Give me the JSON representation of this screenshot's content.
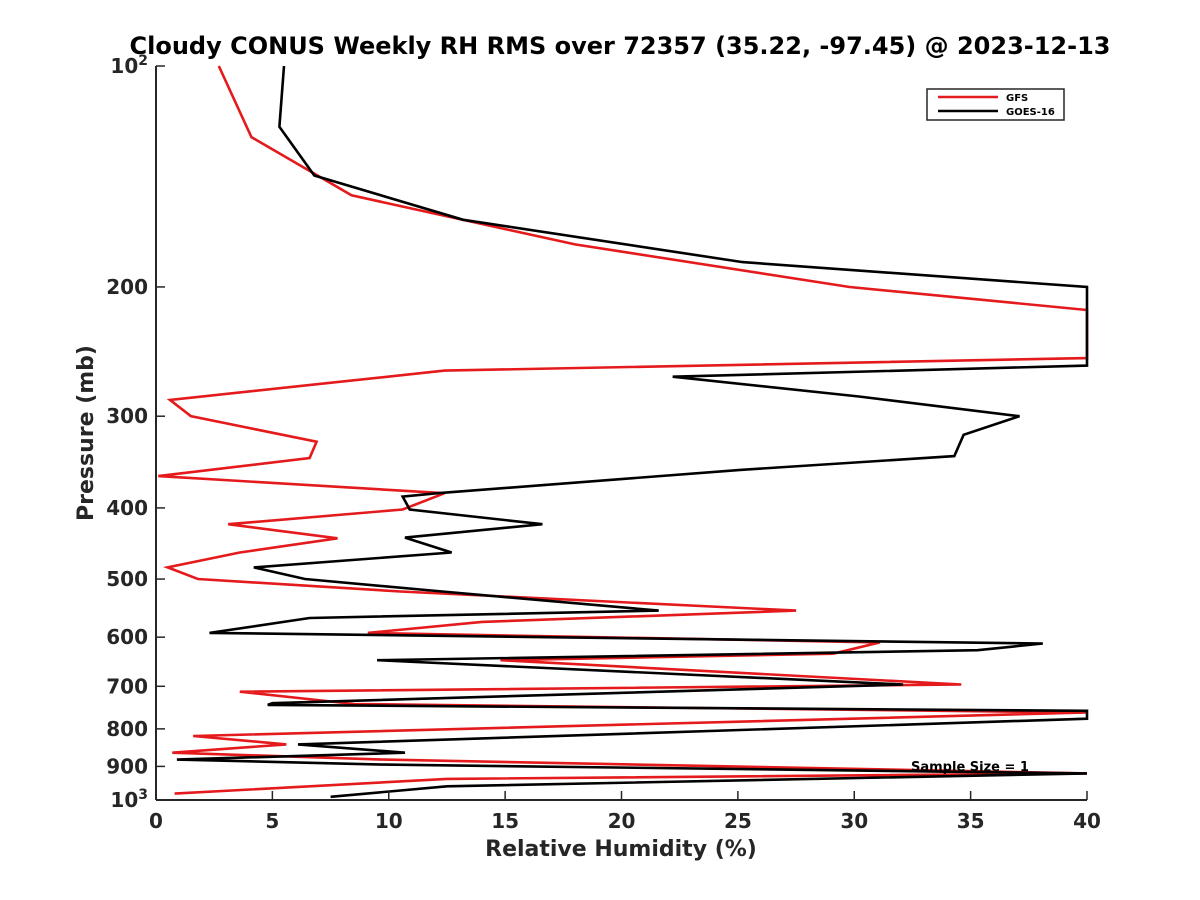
{
  "chart_data": {
    "type": "line",
    "title": "Cloudy CONUS Weekly RH RMS over 72357 (35.22, -97.45) @ 2023-12-13",
    "xlabel": "Relative Humidity (%)",
    "ylabel": "Pressure (mb)",
    "xlim": [
      0,
      40
    ],
    "ylim": [
      100,
      1000
    ],
    "y_scale": "log",
    "y_reversed": true,
    "grid": false,
    "legend_position": "top-right",
    "x_ticks": [
      0,
      5,
      10,
      15,
      20,
      25,
      30,
      35,
      40
    ],
    "y_ticks": [
      {
        "value": 100,
        "label": "10",
        "sup": "2"
      },
      {
        "value": 200,
        "label": "200"
      },
      {
        "value": 300,
        "label": "300"
      },
      {
        "value": 400,
        "label": "400"
      },
      {
        "value": 500,
        "label": "500"
      },
      {
        "value": 600,
        "label": "600"
      },
      {
        "value": 700,
        "label": "700"
      },
      {
        "value": 800,
        "label": "800"
      },
      {
        "value": 900,
        "label": "900"
      },
      {
        "value": 1000,
        "label": "10",
        "sup": "3"
      }
    ],
    "series": [
      {
        "name": "GFS",
        "color": "#e41a1c",
        "points": [
          [
            2.7,
            100
          ],
          [
            4.1,
            125
          ],
          [
            8.4,
            150
          ],
          [
            18,
            175
          ],
          [
            29.8,
            200
          ],
          [
            40,
            215
          ],
          [
            40,
            250
          ],
          [
            12.4,
            260
          ],
          [
            0.6,
            285
          ],
          [
            1.5,
            300
          ],
          [
            6.9,
            325
          ],
          [
            6.6,
            342
          ],
          [
            0.1,
            362
          ],
          [
            12.4,
            382
          ],
          [
            10.6,
            402
          ],
          [
            3.1,
            421
          ],
          [
            7.8,
            440
          ],
          [
            3.6,
            460
          ],
          [
            0.5,
            482
          ],
          [
            1.8,
            500
          ],
          [
            10.5,
            520
          ],
          [
            27.5,
            552
          ],
          [
            14,
            572
          ],
          [
            9.1,
            592
          ],
          [
            31.1,
            610
          ],
          [
            29.1,
            632
          ],
          [
            14.8,
            645
          ],
          [
            34.6,
            696
          ],
          [
            3.6,
            712
          ],
          [
            8.5,
            740
          ],
          [
            40,
            760
          ],
          [
            1.6,
            818
          ],
          [
            5.6,
            840
          ],
          [
            0.7,
            862
          ],
          [
            9.8,
            881
          ],
          [
            40,
            920
          ],
          [
            12.5,
            936
          ],
          [
            0.8,
            980
          ]
        ]
      },
      {
        "name": "GOES-16",
        "color": "#000000",
        "points": [
          [
            5.5,
            100
          ],
          [
            5.3,
            121
          ],
          [
            6.8,
            141
          ],
          [
            13.2,
            162
          ],
          [
            25.2,
            185
          ],
          [
            40,
            200
          ],
          [
            40,
            256
          ],
          [
            22.2,
            265
          ],
          [
            30.2,
            282
          ],
          [
            37.1,
            300
          ],
          [
            34.7,
            318
          ],
          [
            34.3,
            340
          ],
          [
            25.1,
            355
          ],
          [
            12.1,
            382
          ],
          [
            10.6,
            386
          ],
          [
            10.9,
            402
          ],
          [
            16.6,
            421
          ],
          [
            10.7,
            439
          ],
          [
            12.7,
            460
          ],
          [
            4.2,
            482
          ],
          [
            6.4,
            500
          ],
          [
            12.3,
            520
          ],
          [
            21.6,
            552
          ],
          [
            6.6,
            565
          ],
          [
            2.3,
            592
          ],
          [
            38.1,
            612
          ],
          [
            35.3,
            625
          ],
          [
            9.5,
            645
          ],
          [
            32.1,
            696
          ],
          [
            5,
            738
          ],
          [
            4.8,
            742
          ],
          [
            40,
            756
          ],
          [
            40,
            775
          ],
          [
            6.1,
            840
          ],
          [
            10.7,
            862
          ],
          [
            0.9,
            881
          ],
          [
            9.8,
            895
          ],
          [
            40,
            920
          ],
          [
            12.5,
            958
          ],
          [
            7.5,
            990
          ]
        ]
      }
    ],
    "annotations": [
      "Sample Size = 1"
    ]
  }
}
